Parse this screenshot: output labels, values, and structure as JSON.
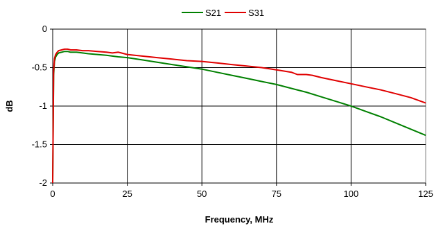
{
  "chart_data": {
    "type": "line",
    "title": "",
    "xlabel": "Frequency, MHz",
    "ylabel": "dB",
    "xlim": [
      0,
      125
    ],
    "ylim": [
      -2,
      0
    ],
    "x_ticks": [
      0,
      25,
      50,
      75,
      100,
      125
    ],
    "y_ticks": [
      0,
      -0.5,
      -1,
      -1.5,
      -2
    ],
    "x_tick_labels": [
      "0",
      "25",
      "50",
      "75",
      "100",
      "125"
    ],
    "y_tick_labels": [
      "0",
      "-0.5",
      "-1",
      "-1.5",
      "-2"
    ],
    "grid": true,
    "legend_position": "top-center",
    "series": [
      {
        "name": "S21",
        "color": "#008000",
        "x": [
          0,
          0.3,
          0.6,
          1,
          1.5,
          2,
          3,
          4,
          5,
          6,
          8,
          10,
          12,
          15,
          18,
          20,
          22,
          25,
          30,
          35,
          40,
          45,
          50,
          55,
          60,
          65,
          70,
          75,
          80,
          85,
          90,
          95,
          100,
          105,
          110,
          115,
          120,
          125
        ],
        "y": [
          -2.0,
          -0.6,
          -0.42,
          -0.36,
          -0.33,
          -0.31,
          -0.3,
          -0.29,
          -0.29,
          -0.3,
          -0.3,
          -0.31,
          -0.32,
          -0.33,
          -0.34,
          -0.35,
          -0.36,
          -0.37,
          -0.4,
          -0.43,
          -0.46,
          -0.49,
          -0.52,
          -0.56,
          -0.6,
          -0.64,
          -0.68,
          -0.72,
          -0.77,
          -0.82,
          -0.88,
          -0.94,
          -1.0,
          -1.07,
          -1.14,
          -1.22,
          -1.3,
          -1.38
        ]
      },
      {
        "name": "S31",
        "color": "#e00000",
        "x": [
          0,
          0.3,
          0.6,
          1,
          1.5,
          2,
          3,
          4,
          5,
          6,
          8,
          10,
          12,
          15,
          18,
          20,
          22,
          23,
          25,
          30,
          35,
          40,
          45,
          50,
          55,
          60,
          65,
          70,
          75,
          80,
          82,
          85,
          87,
          90,
          95,
          100,
          105,
          110,
          115,
          120,
          125
        ],
        "y": [
          -2.0,
          -0.55,
          -0.38,
          -0.33,
          -0.3,
          -0.28,
          -0.27,
          -0.26,
          -0.26,
          -0.27,
          -0.27,
          -0.28,
          -0.28,
          -0.29,
          -0.3,
          -0.31,
          -0.3,
          -0.31,
          -0.33,
          -0.35,
          -0.37,
          -0.39,
          -0.41,
          -0.42,
          -0.44,
          -0.46,
          -0.48,
          -0.5,
          -0.53,
          -0.56,
          -0.59,
          -0.59,
          -0.6,
          -0.63,
          -0.67,
          -0.71,
          -0.75,
          -0.79,
          -0.84,
          -0.89,
          -0.96
        ]
      }
    ]
  }
}
